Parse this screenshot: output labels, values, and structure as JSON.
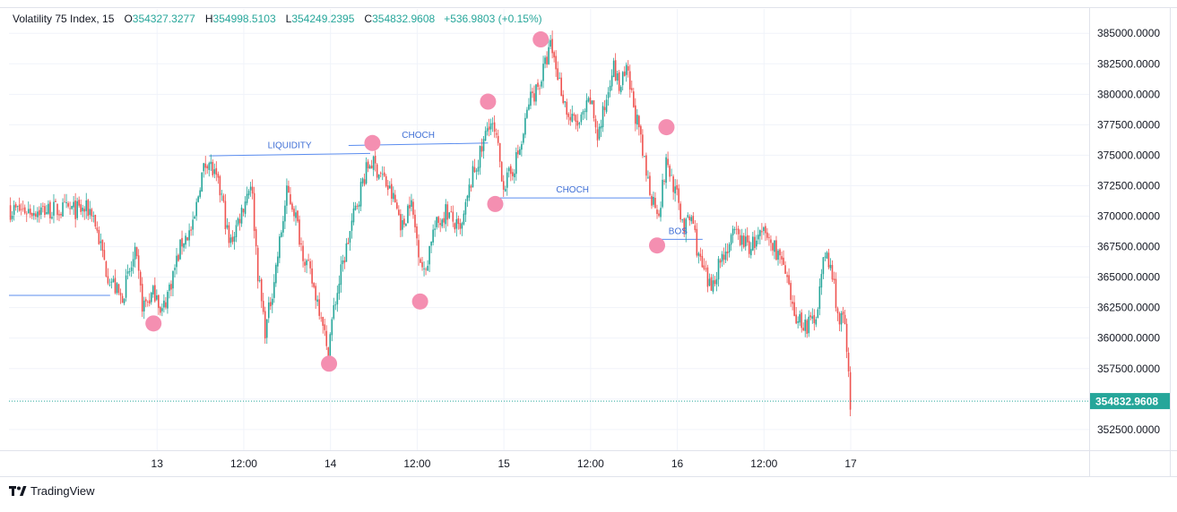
{
  "legend": {
    "symbol": "Volatility 75 Index, 15",
    "open_label": "O",
    "open": "354327.3277",
    "high_label": "H",
    "high": "354998.5103",
    "low_label": "L",
    "low": "354249.2395",
    "close_label": "C",
    "close": "354832.9608",
    "change": "+536.9803 (+0.15%)"
  },
  "branding": {
    "name": "TradingView"
  },
  "colors": {
    "up": "#26a69a",
    "down": "#ef5350",
    "marker": "#f48fb1",
    "annotation_line": "#5b8def",
    "grid": "#f0f3fa",
    "price_tag": "#26a69a"
  },
  "chart_data": {
    "type": "candlestick",
    "interval": "15",
    "grid": true,
    "y_axis": {
      "position": "right",
      "range": [
        350800,
        387000
      ],
      "ticks": [
        352500,
        355000,
        357500,
        360000,
        362500,
        365000,
        367500,
        370000,
        372500,
        375000,
        377500,
        380000,
        382500,
        385000
      ],
      "tick_labels": [
        "352500.0000",
        "",
        "357500.0000",
        "360000.0000",
        "362500.0000",
        "365000.0000",
        "367500.0000",
        "370000.0000",
        "372500.0000",
        "375000.0000",
        "377500.0000",
        "380000.0000",
        "382500.0000",
        "385000.0000"
      ]
    },
    "x_axis": {
      "range_hours": [
        -20.5,
        129
      ],
      "ticks": [
        {
          "h": 0,
          "label": "13"
        },
        {
          "h": 12,
          "label": "12:00"
        },
        {
          "h": 24,
          "label": "14"
        },
        {
          "h": 36,
          "label": "12:00"
        },
        {
          "h": 48,
          "label": "15"
        },
        {
          "h": 60,
          "label": "12:00"
        },
        {
          "h": 72,
          "label": "16"
        },
        {
          "h": 84,
          "label": "12:00"
        },
        {
          "h": 96,
          "label": "17"
        }
      ]
    },
    "last_price": {
      "value": 354832.9608,
      "label": "354832.9608"
    },
    "path_anchors": [
      {
        "h": -9,
        "p": 370500
      },
      {
        "h": -7,
        "p": 365500
      },
      {
        "h": -5,
        "p": 363200
      },
      {
        "h": -3,
        "p": 366800
      },
      {
        "h": -2,
        "p": 362600
      },
      {
        "h": 0,
        "p": 364000
      },
      {
        "h": 0.5,
        "p": 361700
      },
      {
        "h": 2,
        "p": 364800
      },
      {
        "h": 3.5,
        "p": 368000
      },
      {
        "h": 5,
        "p": 369000
      },
      {
        "h": 6,
        "p": 373000
      },
      {
        "h": 7,
        "p": 374800
      },
      {
        "h": 9,
        "p": 371500
      },
      {
        "h": 10,
        "p": 367500
      },
      {
        "h": 12,
        "p": 371000
      },
      {
        "h": 13,
        "p": 373000
      },
      {
        "h": 14,
        "p": 365000
      },
      {
        "h": 15,
        "p": 360500
      },
      {
        "h": 16.5,
        "p": 366000
      },
      {
        "h": 18,
        "p": 372000
      },
      {
        "h": 19,
        "p": 370500
      },
      {
        "h": 20,
        "p": 367500
      },
      {
        "h": 22,
        "p": 363500
      },
      {
        "h": 23,
        "p": 361500
      },
      {
        "h": 23.5,
        "p": 358500
      },
      {
        "h": 24.5,
        "p": 362500
      },
      {
        "h": 25.5,
        "p": 365500
      },
      {
        "h": 27,
        "p": 369500
      },
      {
        "h": 28.5,
        "p": 373000
      },
      {
        "h": 29.5,
        "p": 374500
      },
      {
        "h": 31,
        "p": 373500
      },
      {
        "h": 33,
        "p": 371000
      },
      {
        "h": 34,
        "p": 369000
      },
      {
        "h": 35,
        "p": 371500
      },
      {
        "h": 36,
        "p": 368000
      },
      {
        "h": 37,
        "p": 365000
      },
      {
        "h": 38,
        "p": 368500
      },
      {
        "h": 40,
        "p": 370500
      },
      {
        "h": 42,
        "p": 368500
      },
      {
        "h": 43.5,
        "p": 373000
      },
      {
        "h": 45,
        "p": 375500
      },
      {
        "h": 46,
        "p": 378000
      },
      {
        "h": 47,
        "p": 376000
      },
      {
        "h": 48,
        "p": 372500
      },
      {
        "h": 49,
        "p": 373500
      },
      {
        "h": 50.5,
        "p": 376000
      },
      {
        "h": 51.5,
        "p": 379500
      },
      {
        "h": 53,
        "p": 381000
      },
      {
        "h": 54.5,
        "p": 384000
      },
      {
        "h": 55.5,
        "p": 381500
      },
      {
        "h": 57,
        "p": 378000
      },
      {
        "h": 58.5,
        "p": 377500
      },
      {
        "h": 60,
        "p": 379500
      },
      {
        "h": 61,
        "p": 376500
      },
      {
        "h": 62,
        "p": 379000
      },
      {
        "h": 63,
        "p": 382500
      },
      {
        "h": 64,
        "p": 380500
      },
      {
        "h": 65,
        "p": 381800
      },
      {
        "h": 66.5,
        "p": 377500
      },
      {
        "h": 67.5,
        "p": 374000
      },
      {
        "h": 68.5,
        "p": 371500
      },
      {
        "h": 69.5,
        "p": 370500
      },
      {
        "h": 70.5,
        "p": 374500
      },
      {
        "h": 71.5,
        "p": 372500
      },
      {
        "h": 73,
        "p": 369000
      },
      {
        "h": 74,
        "p": 370000
      },
      {
        "h": 75,
        "p": 366500
      },
      {
        "h": 76.5,
        "p": 364000
      },
      {
        "h": 78,
        "p": 366500
      },
      {
        "h": 80,
        "p": 368500
      },
      {
        "h": 82,
        "p": 367500
      },
      {
        "h": 84,
        "p": 368500
      },
      {
        "h": 86,
        "p": 367000
      },
      {
        "h": 87,
        "p": 365000
      },
      {
        "h": 88,
        "p": 362000
      },
      {
        "h": 90,
        "p": 361000
      },
      {
        "h": 91,
        "p": 361500
      },
      {
        "h": 92.5,
        "p": 367000
      },
      {
        "h": 93.5,
        "p": 365000
      },
      {
        "h": 94.5,
        "p": 361000
      },
      {
        "h": 95,
        "p": 362000
      },
      {
        "h": 95.5,
        "p": 358300
      },
      {
        "h": 96,
        "p": 354500
      }
    ],
    "annotations": [
      {
        "type": "line",
        "text": "",
        "from": {
          "h": -20.5,
          "p": 363500
        },
        "to": {
          "h": -6.5,
          "p": 363500
        }
      },
      {
        "type": "line",
        "text": "LIQUIDITY",
        "from": {
          "h": 7.2,
          "p": 374950
        },
        "to": {
          "h": 29.5,
          "p": 375150
        }
      },
      {
        "type": "line",
        "text": "CHOCH",
        "from": {
          "h": 26.5,
          "p": 375800
        },
        "to": {
          "h": 45.8,
          "p": 376000
        }
      },
      {
        "type": "line",
        "text": "CHOCH",
        "from": {
          "h": 46.3,
          "p": 371500
        },
        "to": {
          "h": 68.7,
          "p": 371500
        }
      },
      {
        "type": "line",
        "text": "BOS",
        "from": {
          "h": 68.7,
          "p": 368100
        },
        "to": {
          "h": 75.5,
          "p": 368100
        }
      }
    ],
    "markers": [
      {
        "h": -0.5,
        "p": 361200
      },
      {
        "h": 23.8,
        "p": 357900
      },
      {
        "h": 29.8,
        "p": 376000
      },
      {
        "h": 36.4,
        "p": 363000
      },
      {
        "h": 45.8,
        "p": 379400
      },
      {
        "h": 46.8,
        "p": 371000
      },
      {
        "h": 53.1,
        "p": 384500
      },
      {
        "h": 69.2,
        "p": 367600
      },
      {
        "h": 70.5,
        "p": 377300
      }
    ]
  }
}
